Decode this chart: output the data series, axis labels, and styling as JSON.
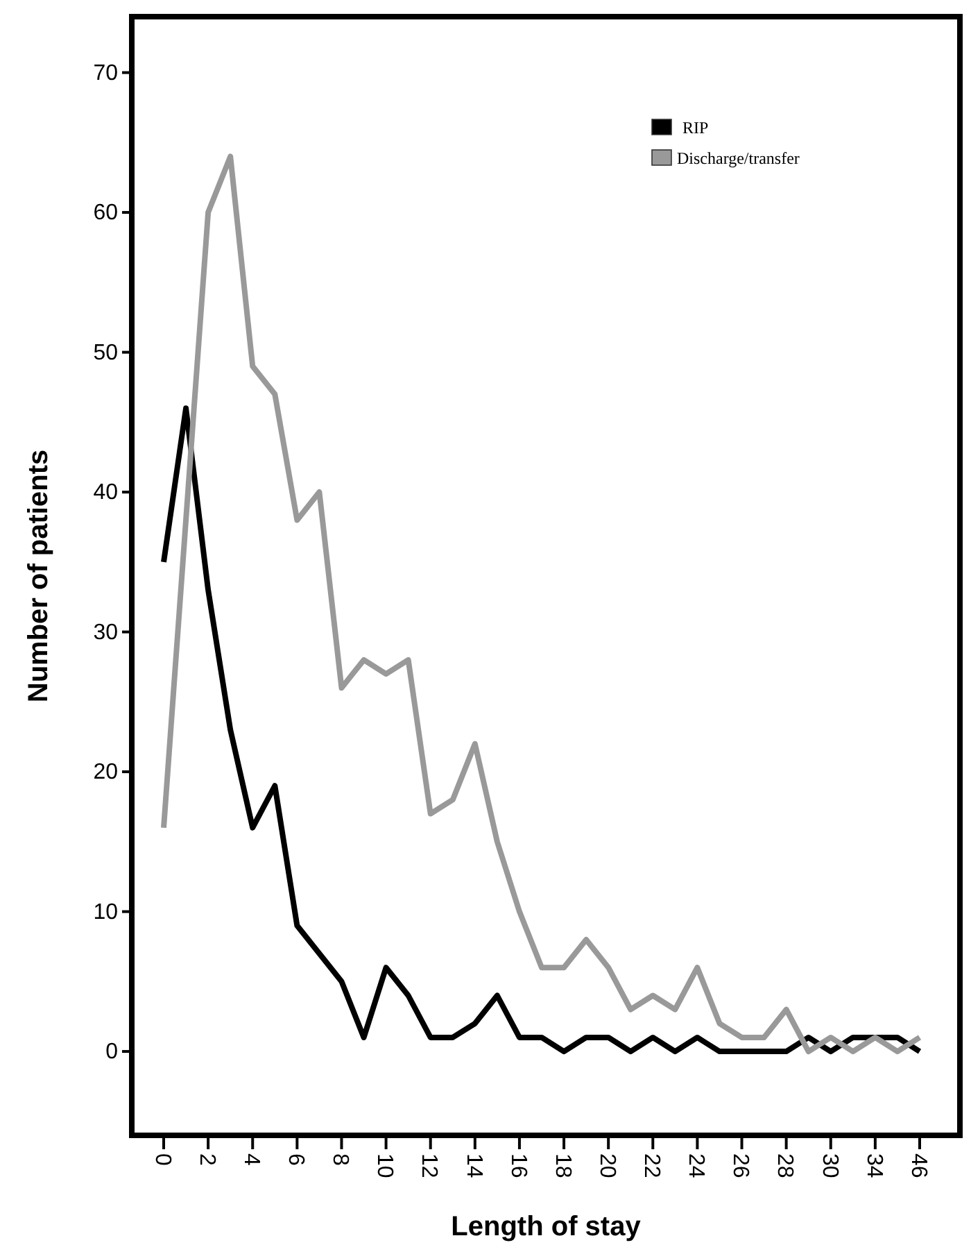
{
  "chart_data": {
    "type": "line",
    "xlabel": "Length of stay",
    "ylabel": "Number of patients",
    "categories": [
      "0",
      null,
      "2",
      null,
      "4",
      null,
      "6",
      null,
      "8",
      null,
      "10",
      null,
      "12",
      null,
      "14",
      null,
      "16",
      null,
      "18",
      null,
      "20",
      null,
      "22",
      null,
      "24",
      null,
      "26",
      null,
      "28",
      null,
      "30",
      null,
      "34",
      null,
      "46"
    ],
    "series": [
      {
        "name": "RIP",
        "color": "#000000",
        "values": [
          35,
          46,
          33,
          23,
          16,
          19,
          9,
          7,
          5,
          1,
          6,
          4,
          1,
          1,
          2,
          4,
          1,
          1,
          0,
          1,
          1,
          0,
          1,
          0,
          1,
          0,
          0,
          0,
          0,
          1,
          0,
          1,
          1,
          1,
          0
        ]
      },
      {
        "name": "Discharge/transfer",
        "color": "#999999",
        "values": [
          16,
          38,
          60,
          64,
          49,
          47,
          38,
          40,
          26,
          28,
          27,
          28,
          17,
          18,
          22,
          15,
          10,
          6,
          6,
          8,
          6,
          3,
          4,
          3,
          6,
          2,
          1,
          1,
          3,
          0,
          1,
          0,
          1,
          0,
          1
        ]
      }
    ],
    "ylim": [
      -6,
      74
    ],
    "yticks": [
      0,
      10,
      20,
      30,
      40,
      50,
      60,
      70
    ],
    "grid": false,
    "legend": "top right",
    "marker": "none",
    "line_style": "solid"
  }
}
